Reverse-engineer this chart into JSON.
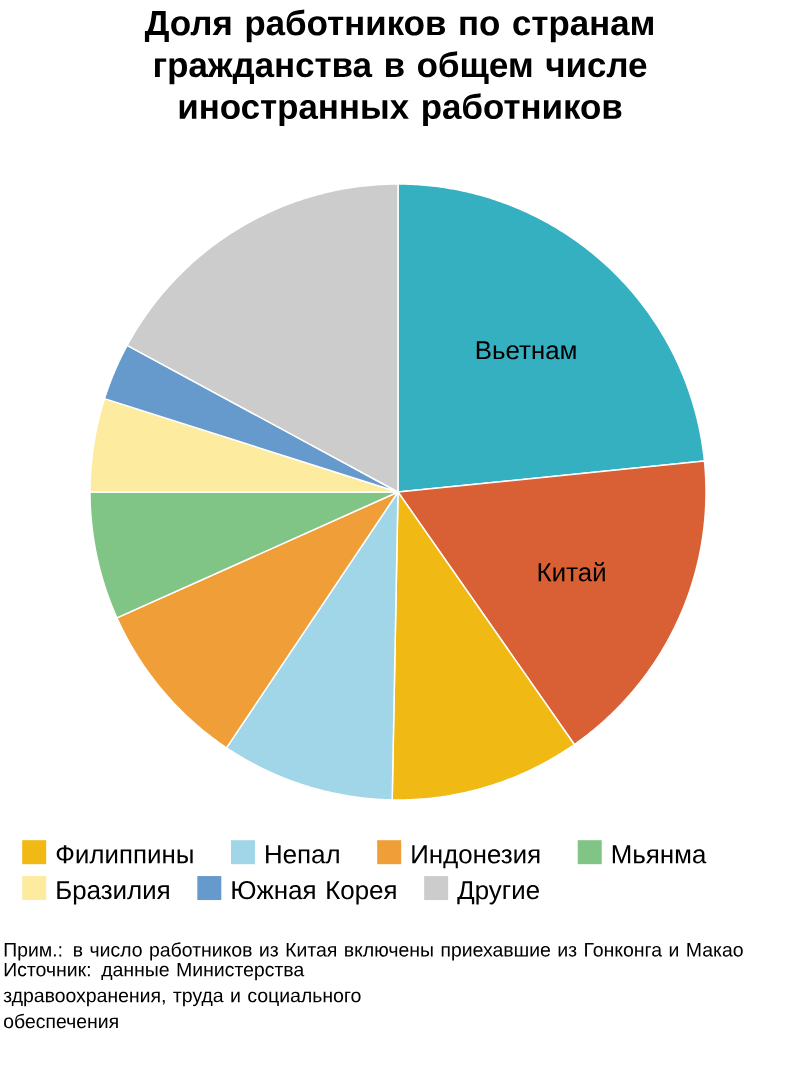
{
  "chart_data": {
    "type": "pie",
    "title": "Доля работников по странам гражданства в общем числе иностранных работников",
    "categories": [
      "Вьетнам",
      "Китай",
      "Филиппины",
      "Непал",
      "Индонезия",
      "Мьянма",
      "Бразилия",
      "Южная Корея",
      "Другие"
    ],
    "values": [
      23.4,
      16.9,
      10.0,
      9.1,
      8.9,
      6.7,
      4.9,
      3.0,
      17.1
    ],
    "colors": [
      "#35b0c1",
      "#d95f34",
      "#f0b914",
      "#a1d6e8",
      "#f09e38",
      "#80c486",
      "#fdeba0",
      "#6699cc",
      "#cccccc"
    ],
    "legend": "bottom",
    "annotations": [
      "Прим.: в число работников из Китая включены приехавшие из Гонконга и Макао",
      "Источник: данные Министерства здравоохранения, труда и социального обеспечения"
    ]
  }
}
